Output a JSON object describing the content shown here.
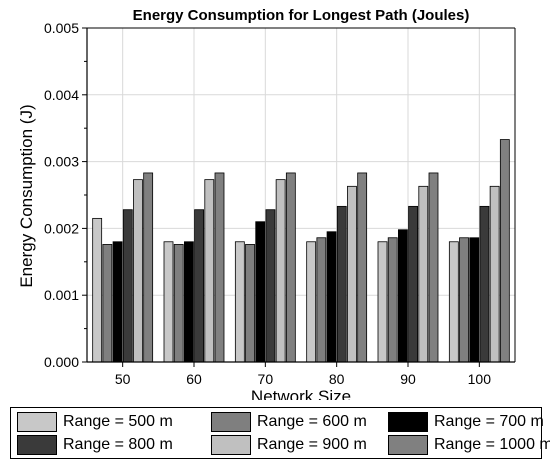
{
  "chart_data": {
    "type": "bar",
    "title": "Energy Consumption for Longest Path (Joules)",
    "xlabel": "Network Size",
    "ylabel": "Energy Consumption (J)",
    "categories": [
      "50",
      "60",
      "70",
      "80",
      "90",
      "100"
    ],
    "ylim": [
      0,
      0.005
    ],
    "yticks": [
      "0.000",
      "0.001",
      "0.002",
      "0.003",
      "0.004",
      "0.005"
    ],
    "grid": true,
    "legend_position": "bottom",
    "series": [
      {
        "name": "Range = 500 m",
        "color": "#c8c8c8",
        "values": [
          0.00215,
          0.0018,
          0.0018,
          0.0018,
          0.0018,
          0.0018
        ]
      },
      {
        "name": "Range = 600 m",
        "color": "#7f7f7f",
        "values": [
          0.00176,
          0.00176,
          0.00176,
          0.00186,
          0.00186,
          0.00186
        ]
      },
      {
        "name": "Range = 700 m",
        "color": "#000000",
        "values": [
          0.0018,
          0.0018,
          0.0021,
          0.00195,
          0.00198,
          0.00186
        ]
      },
      {
        "name": "Range = 800 m",
        "color": "#3a3a3a",
        "values": [
          0.00228,
          0.00228,
          0.00228,
          0.00233,
          0.00233,
          0.00233
        ]
      },
      {
        "name": "Range = 900 m",
        "color": "#c0c0c0",
        "values": [
          0.00273,
          0.00273,
          0.00273,
          0.00263,
          0.00263,
          0.00263
        ]
      },
      {
        "name": "Range = 1000 m",
        "color": "#808080",
        "values": [
          0.00283,
          0.00283,
          0.00283,
          0.00283,
          0.00283,
          0.00333
        ]
      }
    ]
  }
}
